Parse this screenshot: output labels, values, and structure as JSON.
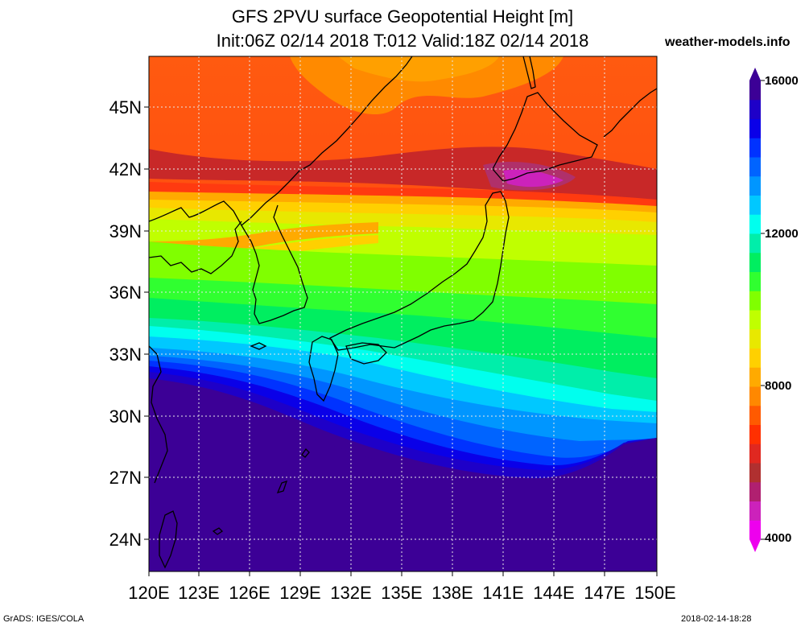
{
  "header": {
    "title_line1": "GFS 2PVU surface Geopotential Height [m]",
    "title_line2": "Init:06Z 02/14 2018 T:012 Valid:18Z 02/14 2018",
    "site": "weather-models.info"
  },
  "map": {
    "lat_labels": [
      "45N",
      "42N",
      "39N",
      "36N",
      "33N",
      "30N",
      "27N",
      "24N"
    ],
    "lon_labels": [
      "120E",
      "123E",
      "126E",
      "129E",
      "132E",
      "135E",
      "138E",
      "141E",
      "144E",
      "147E",
      "150E"
    ],
    "lon_range": [
      120,
      150
    ],
    "lat_range": [
      22.5,
      47.5
    ]
  },
  "colorbar": {
    "labels": [
      "16000",
      "12000",
      "8000",
      "4000"
    ],
    "range": [
      4000,
      16000
    ],
    "colors": [
      "#ee00ee",
      "#cc22bb",
      "#b02070",
      "#b03030",
      "#e02820",
      "#ff3000",
      "#ff5a00",
      "#ff8800",
      "#ffaa00",
      "#ffd000",
      "#e8e800",
      "#c0ff00",
      "#80ff00",
      "#30ff30",
      "#00ee60",
      "#00eeaa",
      "#00ffee",
      "#00c8ff",
      "#0096ff",
      "#0064ff",
      "#0032ff",
      "#0a00e8",
      "#1e00c8",
      "#3c0096"
    ]
  },
  "footer": {
    "credit": "GrADS: IGES/COLA",
    "timestamp": "2018-02-14-18:28"
  }
}
